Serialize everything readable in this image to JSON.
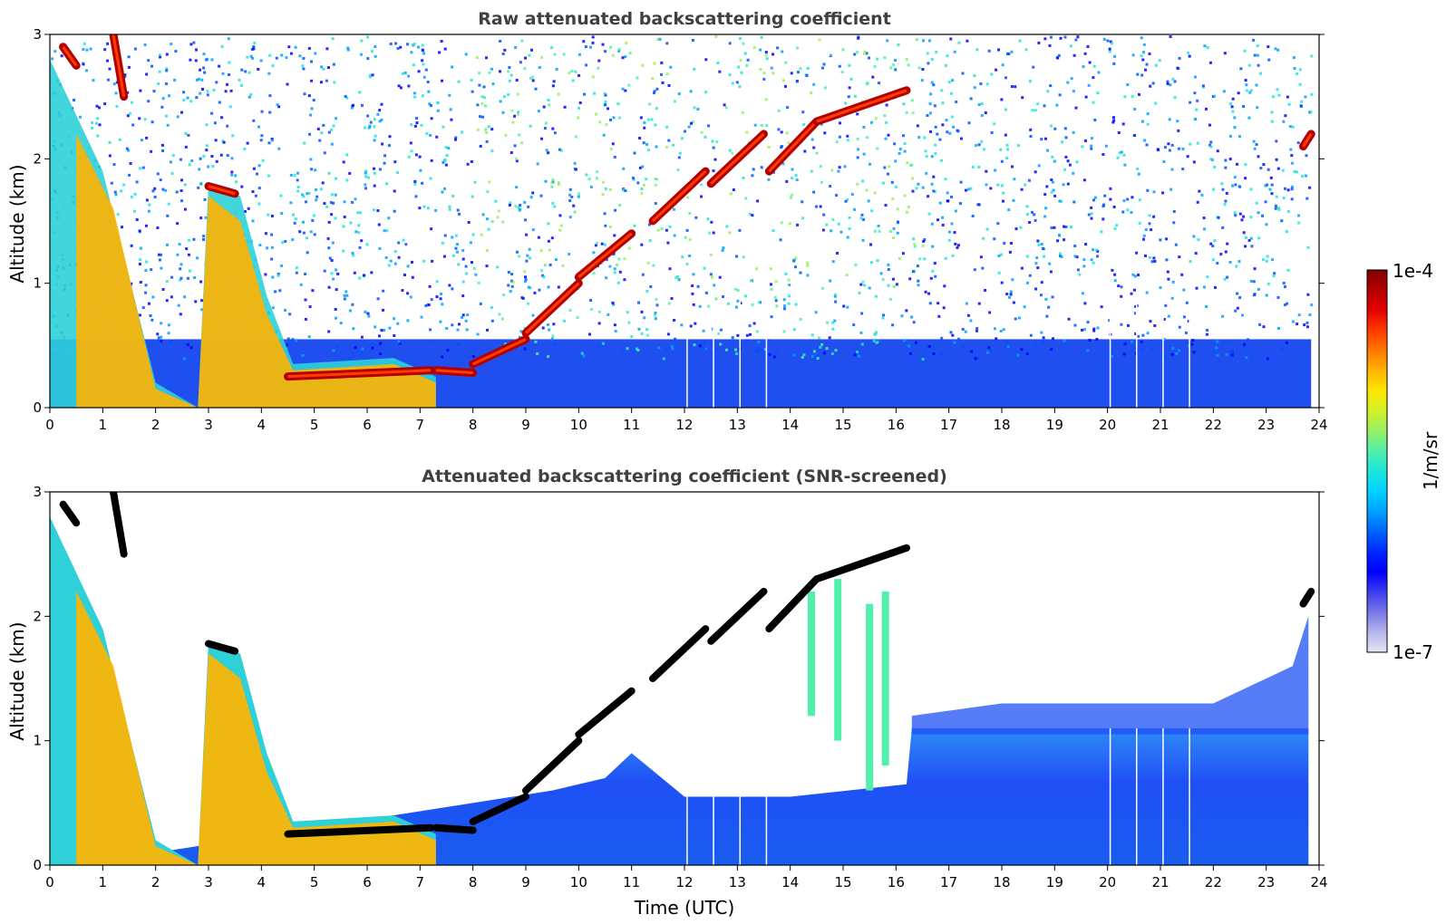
{
  "chart_data": [
    {
      "type": "heatmap",
      "title": "Raw attenuated backscattering coefficient",
      "xlabel": "",
      "ylabel": "Altitude (km)",
      "xlim": [
        0,
        24
      ],
      "ylim": [
        0,
        3
      ],
      "xticks": [
        "0",
        "1",
        "2",
        "3",
        "4",
        "5",
        "6",
        "7",
        "8",
        "9",
        "10",
        "11",
        "12",
        "13",
        "14",
        "15",
        "16",
        "17",
        "18",
        "19",
        "20",
        "21",
        "22",
        "23",
        "24"
      ],
      "yticks": [
        "0",
        "1",
        "2",
        "3"
      ],
      "colorscale": "jet",
      "features": {
        "aerosol_layer_top_km": [
          [
            0,
            2.8
          ],
          [
            1,
            1.9
          ],
          [
            2,
            0.2
          ],
          [
            2.8,
            0.0
          ],
          [
            3,
            1.8
          ],
          [
            3.6,
            1.7
          ],
          [
            4.1,
            0.9
          ],
          [
            4.6,
            0.35
          ],
          [
            6.5,
            0.4
          ],
          [
            7.3,
            0.25
          ],
          [
            7.8,
            0.25
          ],
          [
            8.5,
            0.4
          ],
          [
            9.2,
            0.65
          ],
          [
            10.0,
            1.05
          ],
          [
            10.8,
            1.4
          ],
          [
            11.6,
            1.7
          ],
          [
            12.4,
            1.95
          ],
          [
            13.2,
            2.0
          ],
          [
            14.0,
            2.25
          ],
          [
            15.0,
            2.4
          ],
          [
            16.2,
            2.55
          ]
        ],
        "strong_layer_segments": [
          [
            0.25,
            2.9,
            0.5,
            2.75
          ],
          [
            1.2,
            3.0,
            1.4,
            2.5
          ],
          [
            3.0,
            1.78,
            3.5,
            1.72
          ],
          [
            4.5,
            0.25,
            7.2,
            0.3
          ],
          [
            7.3,
            0.3,
            8.0,
            0.28
          ],
          [
            8.0,
            0.35,
            9.0,
            0.55
          ],
          [
            9.0,
            0.6,
            10.0,
            1.0
          ],
          [
            10.0,
            1.05,
            11.0,
            1.4
          ],
          [
            11.4,
            1.5,
            12.4,
            1.9
          ],
          [
            12.5,
            1.8,
            13.5,
            2.2
          ],
          [
            13.6,
            1.9,
            14.5,
            2.3
          ],
          [
            14.5,
            2.3,
            16.2,
            2.55
          ],
          [
            23.7,
            2.1,
            23.85,
            2.2
          ]
        ],
        "data_gaps_utc": [
          12.05,
          12.55,
          13.05,
          13.55,
          20.05,
          20.55,
          21.05,
          21.55
        ],
        "data_end_utc": 23.85
      }
    },
    {
      "type": "heatmap",
      "title": "Attenuated backscattering coefficient (SNR-screened)",
      "xlabel": "Time (UTC)",
      "ylabel": "Altitude (km)",
      "xlim": [
        0,
        24
      ],
      "ylim": [
        0,
        3
      ],
      "xticks": [
        "0",
        "1",
        "2",
        "3",
        "4",
        "5",
        "6",
        "7",
        "8",
        "9",
        "10",
        "11",
        "12",
        "13",
        "14",
        "15",
        "16",
        "17",
        "18",
        "19",
        "20",
        "21",
        "22",
        "23",
        "24"
      ],
      "yticks": [
        "0",
        "1",
        "2",
        "3"
      ],
      "colorscale": "jet",
      "features": {
        "boundary_layer_top_km": [
          [
            0,
            0.8
          ],
          [
            1.5,
            0.8
          ],
          [
            2.0,
            0.1
          ],
          [
            9.5,
            0.6
          ],
          [
            10.5,
            0.7
          ],
          [
            11.0,
            0.9
          ],
          [
            12.0,
            0.55
          ],
          [
            14.0,
            0.55
          ],
          [
            16.2,
            0.65
          ],
          [
            16.3,
            1.1
          ],
          [
            20.0,
            1.1
          ],
          [
            23.8,
            1.1
          ]
        ],
        "faint_cloud_top_km": [
          [
            16.3,
            1.2
          ],
          [
            18,
            1.3
          ],
          [
            20,
            1.3
          ],
          [
            22,
            1.3
          ],
          [
            23.5,
            1.6
          ],
          [
            23.8,
            2.0
          ]
        ]
      }
    }
  ],
  "colorbar": {
    "max_label": "1e-4",
    "min_label": "1e-7",
    "unit_label": "1/m/sr",
    "colors": [
      "#e6e6f5",
      "#b4b4ec",
      "#7878e8",
      "#3c3cf0",
      "#0000ff",
      "#0028ff",
      "#0064ff",
      "#00a0ff",
      "#00d2ff",
      "#1ee6dc",
      "#50f0aa",
      "#96f064",
      "#d2f028",
      "#ffe600",
      "#ffb400",
      "#ff7800",
      "#ff3c00",
      "#e60000",
      "#b40000",
      "#800000"
    ]
  }
}
